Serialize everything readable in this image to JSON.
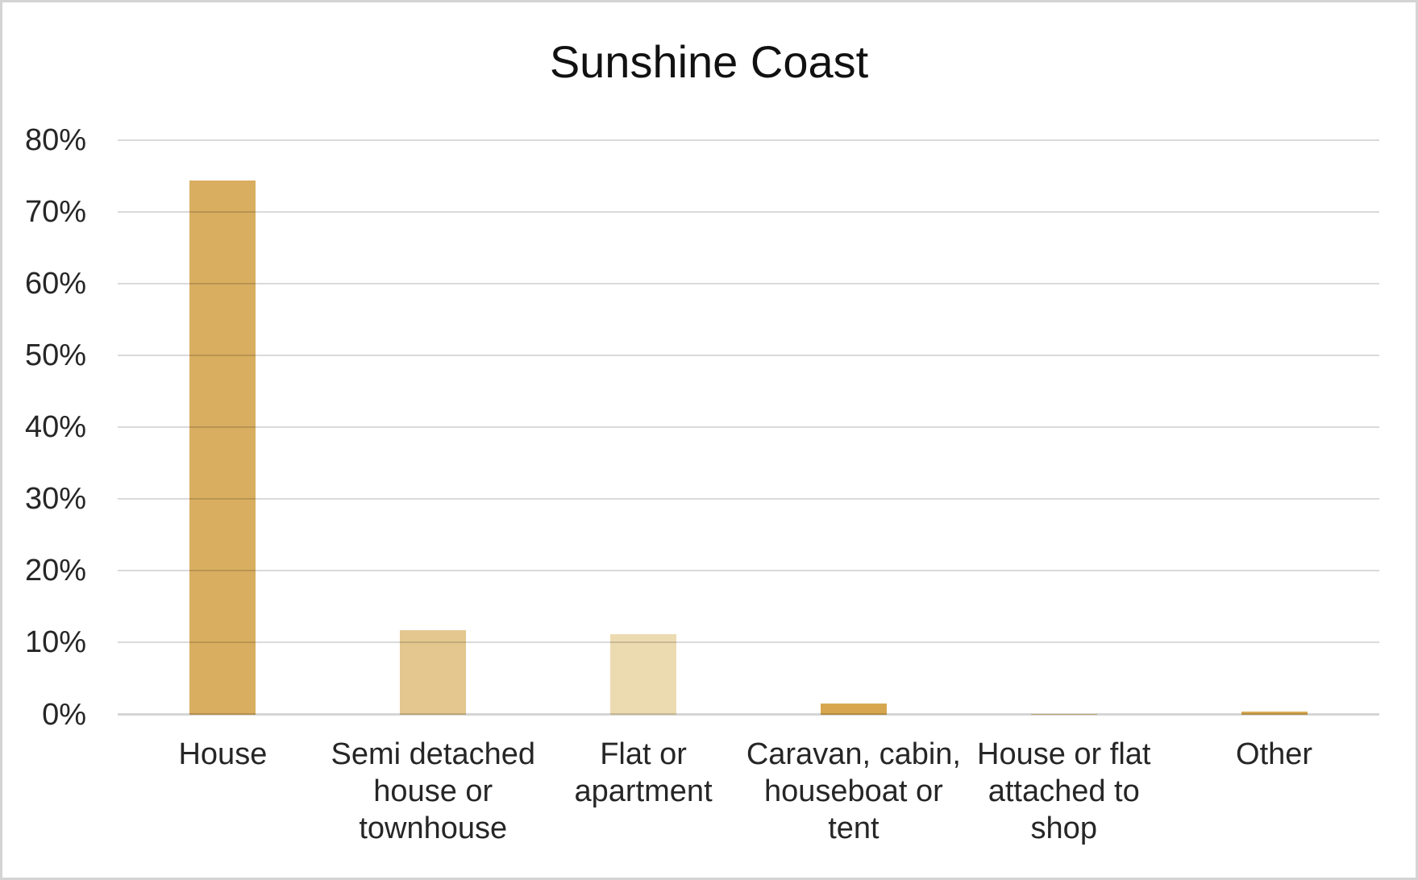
{
  "chart_data": {
    "type": "bar",
    "title": "Sunshine Coast",
    "categories": [
      "House",
      "Semi detached house or townhouse",
      "Flat or apartment",
      "Caravan, cabin, houseboat or tent",
      "House or flat attached to shop",
      "Other"
    ],
    "values": [
      74.4,
      11.8,
      11.2,
      1.6,
      0.1,
      0.5
    ],
    "value_unit": "%",
    "xlabel": "",
    "ylabel": "",
    "ylim": [
      0,
      80
    ],
    "ytick_step": 10,
    "ytick_labels": [
      "0%",
      "10%",
      "20%",
      "30%",
      "40%",
      "50%",
      "60%",
      "70%",
      "80%"
    ],
    "grid": "horizontal",
    "legend": "none",
    "bar_colors": [
      "#D9AE60",
      "#E3C78E",
      "#ECDAB1",
      "#D7A74F",
      "#E3C78E",
      "#D9AC56"
    ]
  },
  "style": {
    "background": "#FFFFFF",
    "frame_border": "#D4D4D4",
    "gridline": "#D9D9D9",
    "label_text": "#262626",
    "title_text": "#111111"
  }
}
